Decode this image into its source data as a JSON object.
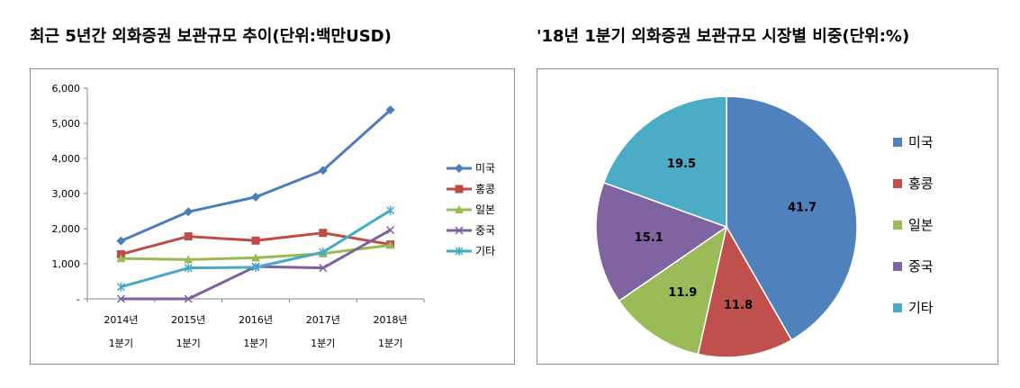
{
  "titles": {
    "left": "최근 5년간 외화증권 보관규모 추이(단위:백만USD)",
    "right": "'18년 1분기 외화증권 보관규모 시장별 비중(단위:%)"
  },
  "chart_data": [
    {
      "type": "line",
      "title": "최근 5년간 외화증권 보관규모 추이(단위:백만USD)",
      "categories": [
        [
          "2014년",
          "1분기"
        ],
        [
          "2015년",
          "1분기"
        ],
        [
          "2016년",
          "1분기"
        ],
        [
          "2017년",
          "1분기"
        ],
        [
          "2018년",
          "1분기"
        ]
      ],
      "ylim": [
        0,
        6000
      ],
      "yticks": [
        0,
        1000,
        2000,
        3000,
        4000,
        5000,
        6000
      ],
      "ytick_labels": [
        "-",
        "1,000",
        "2,000",
        "3,000",
        "4,000",
        "5,000",
        "6,000"
      ],
      "grid": false,
      "legend": "right",
      "series": [
        {
          "name": "미국",
          "color": "#4a7ebb",
          "marker": "diamond",
          "values": [
            1650,
            2480,
            2900,
            3660,
            5380
          ]
        },
        {
          "name": "홍콩",
          "color": "#be4b48",
          "marker": "square",
          "values": [
            1270,
            1780,
            1660,
            1880,
            1550
          ]
        },
        {
          "name": "일본",
          "color": "#98b954",
          "marker": "triangle",
          "values": [
            1150,
            1120,
            1170,
            1290,
            1530
          ]
        },
        {
          "name": "중국",
          "color": "#7d60a0",
          "marker": "x",
          "values": [
            0,
            0,
            920,
            880,
            1960
          ]
        },
        {
          "name": "기타",
          "color": "#46aac5",
          "marker": "star",
          "values": [
            340,
            880,
            900,
            1330,
            2520
          ]
        }
      ]
    },
    {
      "type": "pie",
      "title": "'18년 1분기 외화증권 보관규모 시장별 비중(단위:%)",
      "legend": "right",
      "slices": [
        {
          "name": "미국",
          "value": 41.7,
          "label": "41.7",
          "color": "#4f81bd"
        },
        {
          "name": "홍콩",
          "value": 11.8,
          "label": "11.8",
          "color": "#c0504d"
        },
        {
          "name": "일본",
          "value": 11.9,
          "label": "11.9",
          "color": "#9bbb59"
        },
        {
          "name": "중국",
          "value": 15.1,
          "label": "15.1",
          "color": "#8064a2"
        },
        {
          "name": "기타",
          "value": 19.5,
          "label": "19.5",
          "color": "#4bacc6"
        }
      ]
    }
  ]
}
